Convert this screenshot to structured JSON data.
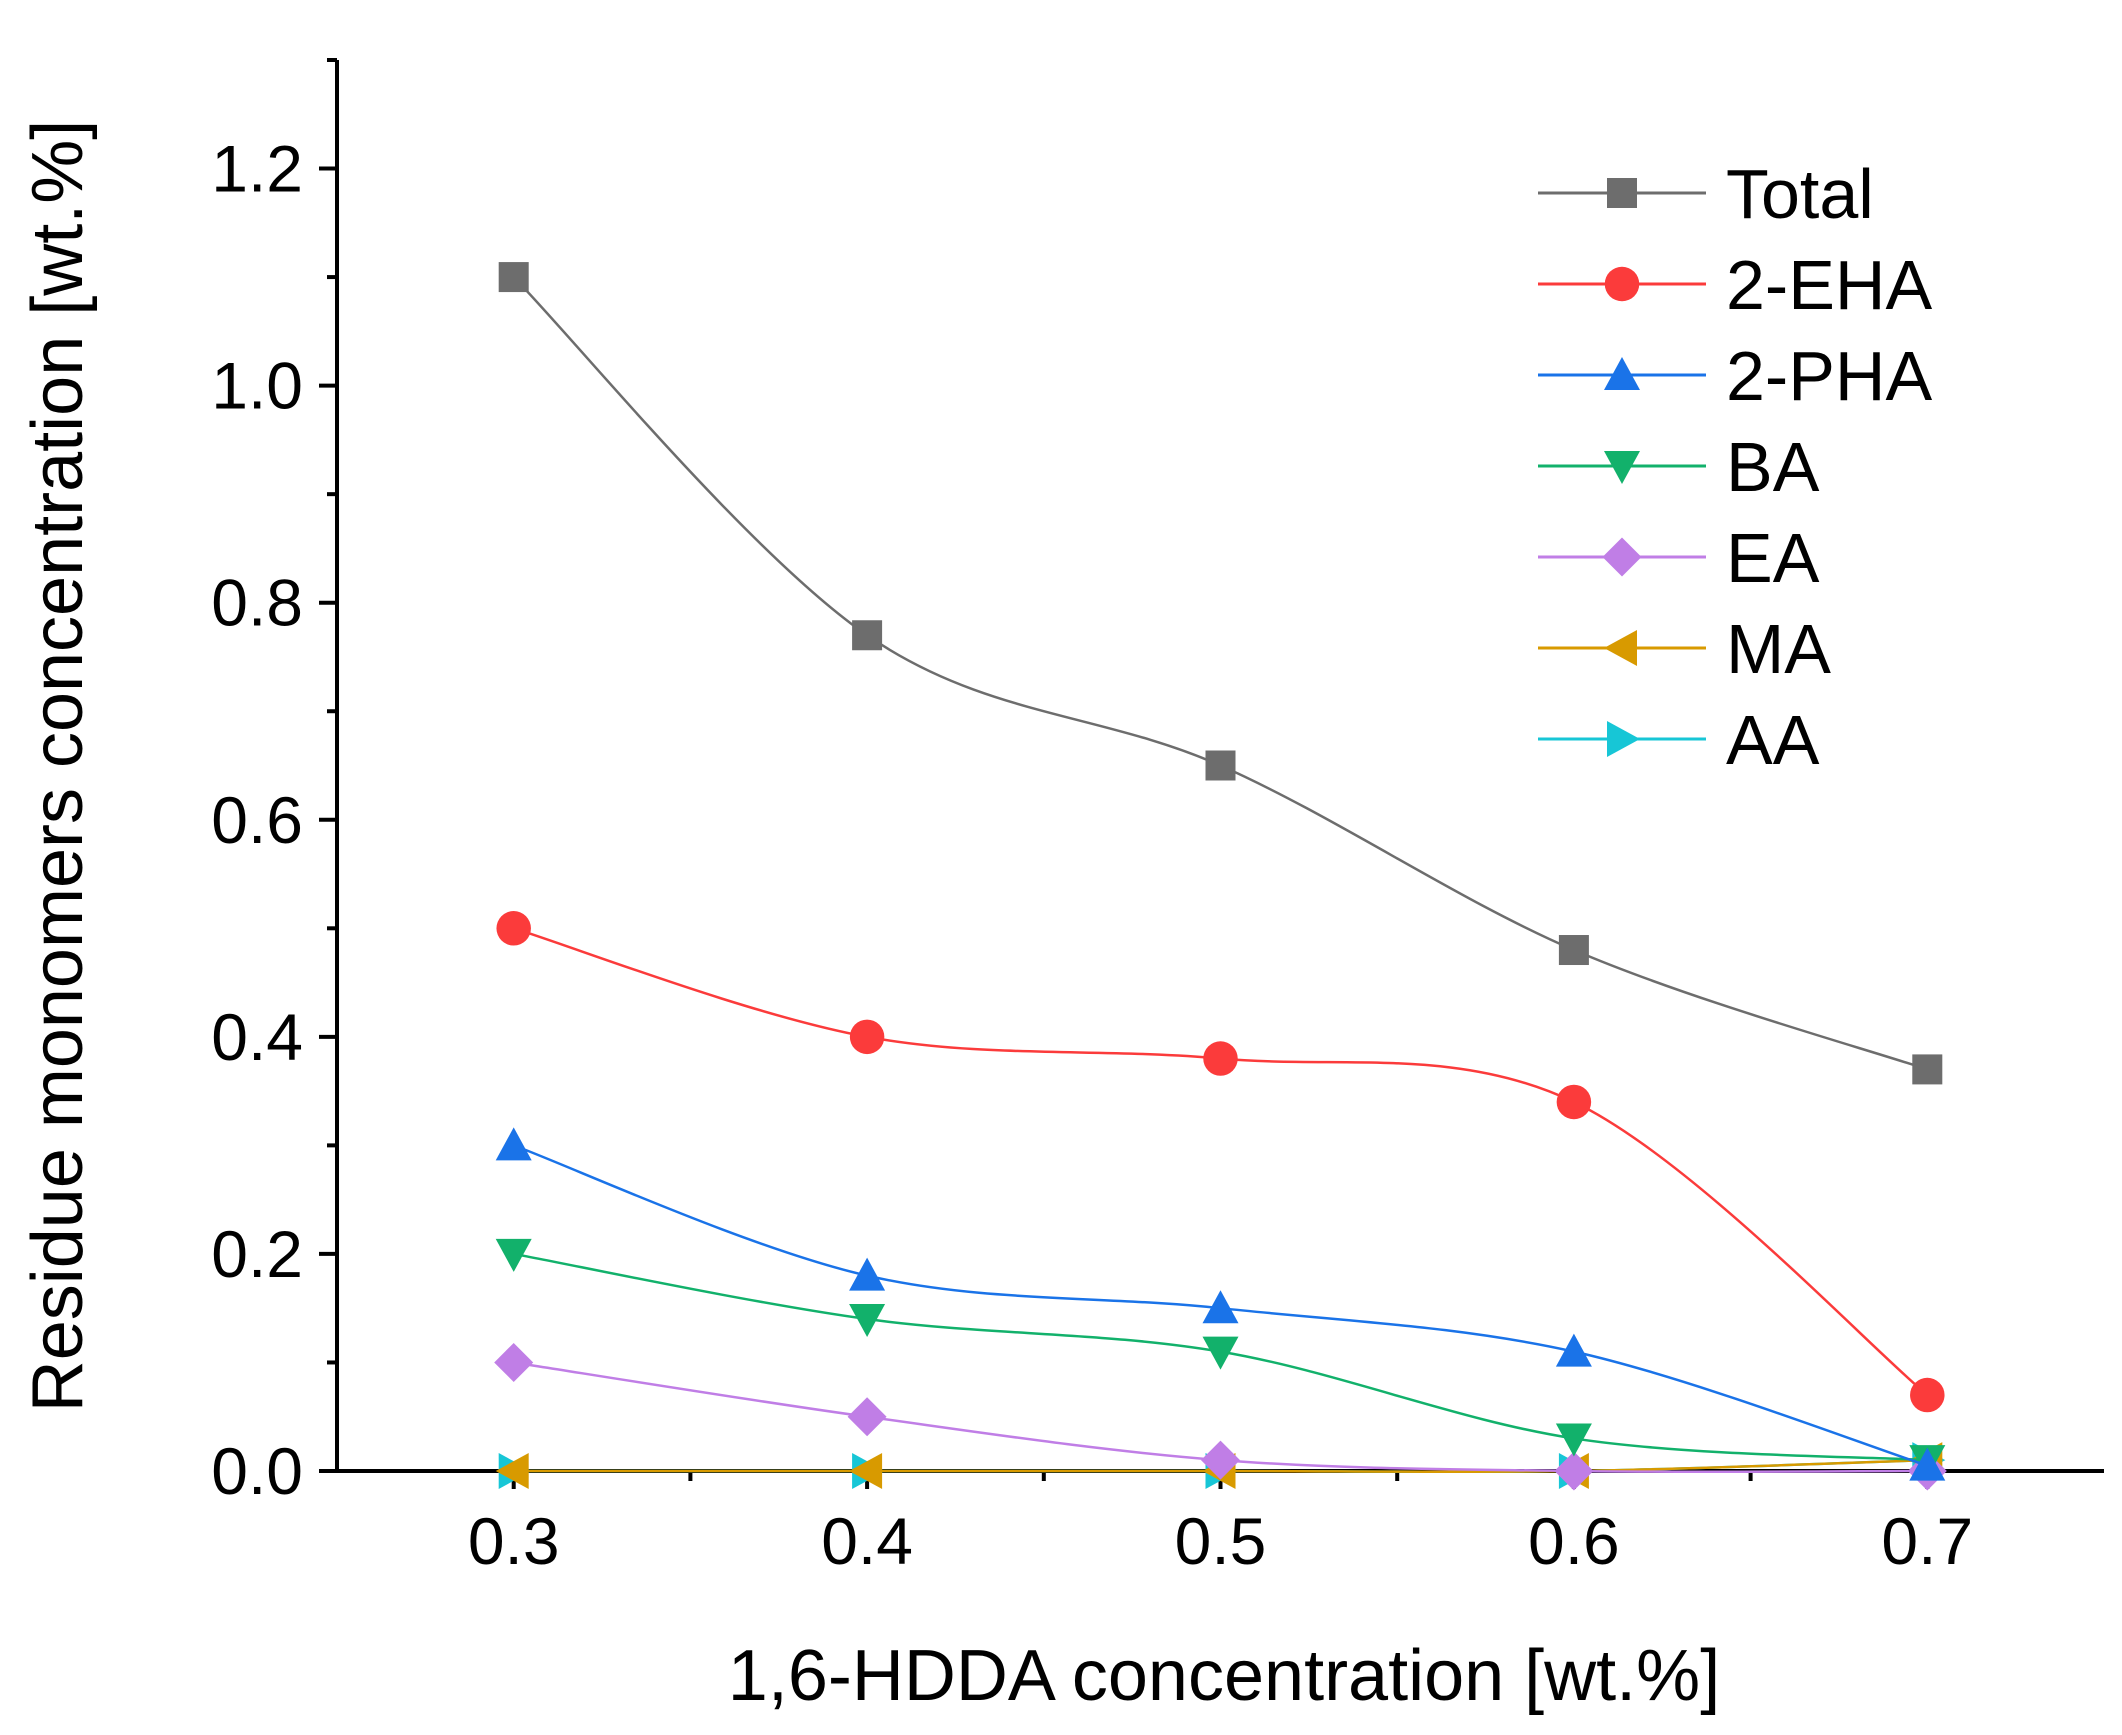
{
  "chart_data": {
    "type": "line",
    "title": "",
    "xlabel": "1,6-HDDA  concentration [wt.%]",
    "ylabel": "Residue monomers concentration [wt.%]",
    "xlim": [
      0.25,
      0.75
    ],
    "ylim": [
      0.0,
      1.3
    ],
    "x": [
      0.3,
      0.4,
      0.5,
      0.6,
      0.7
    ],
    "x_tick_labels": [
      "0.3",
      "0.4",
      "0.5",
      "0.6",
      "0.7"
    ],
    "y_ticks": [
      0.0,
      0.2,
      0.4,
      0.6,
      0.8,
      1.0,
      1.2
    ],
    "y_tick_labels": [
      "0.0",
      "0.2",
      "0.4",
      "0.6",
      "0.8",
      "1.0",
      "1.2"
    ],
    "grid": false,
    "legend_position": "top-right",
    "series": [
      {
        "name": "Total",
        "color": "#6d6d6d",
        "marker": "square",
        "values": [
          1.1,
          0.77,
          0.65,
          0.48,
          0.37
        ]
      },
      {
        "name": "2-EHA",
        "color": "#fb3b3b",
        "marker": "circle",
        "values": [
          0.5,
          0.4,
          0.38,
          0.34,
          0.07
        ]
      },
      {
        "name": "2-PHA",
        "color": "#1a73e8",
        "marker": "triangle-up",
        "values": [
          0.3,
          0.18,
          0.15,
          0.11,
          0.005
        ]
      },
      {
        "name": "BA",
        "color": "#12b16b",
        "marker": "triangle-down",
        "values": [
          0.2,
          0.14,
          0.11,
          0.03,
          0.01
        ]
      },
      {
        "name": "EA",
        "color": "#c07ee6",
        "marker": "diamond",
        "values": [
          0.1,
          0.05,
          0.01,
          0.0,
          0.0
        ]
      },
      {
        "name": "MA",
        "color": "#d89a00",
        "marker": "triangle-left",
        "values": [
          0.0,
          0.0,
          0.0,
          0.0,
          0.01
        ]
      },
      {
        "name": "AA",
        "color": "#17c6d6",
        "marker": "triangle-right",
        "values": [
          0.0,
          0.0,
          0.0,
          0.0,
          0.01
        ]
      }
    ]
  }
}
